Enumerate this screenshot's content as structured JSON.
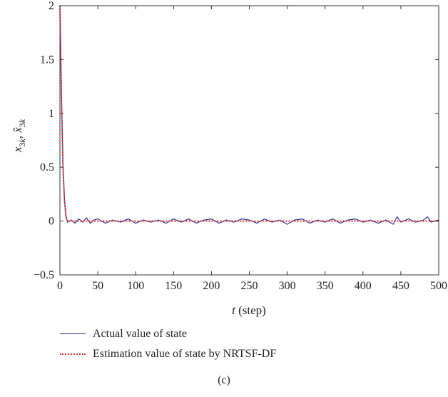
{
  "chart_data": {
    "type": "line",
    "xlabel_var": "t",
    "xlabel_unit": "(step)",
    "ylabel": "x3k, x̂3k",
    "xlim": [
      0,
      500
    ],
    "ylim": [
      -0.5,
      2
    ],
    "x_ticks": [
      "0",
      "50",
      "100",
      "150",
      "200",
      "250",
      "300",
      "350",
      "400",
      "450",
      "500"
    ],
    "y_ticks": [
      "−0.5",
      "0",
      "0.5",
      "1",
      "1.5",
      "2"
    ],
    "grid": false,
    "legend_position": "bottom-left, below plot",
    "series": [
      {
        "name": "Actual value of state",
        "color": "#2f2f8f",
        "style": "solid",
        "x": [
          0,
          2,
          4,
          6,
          8,
          10,
          15,
          20,
          25,
          30,
          35,
          40,
          45,
          50,
          60,
          70,
          80,
          90,
          100,
          110,
          120,
          130,
          140,
          150,
          160,
          170,
          180,
          190,
          200,
          210,
          220,
          230,
          240,
          250,
          260,
          270,
          280,
          290,
          300,
          310,
          320,
          330,
          340,
          350,
          360,
          370,
          380,
          390,
          400,
          410,
          420,
          430,
          440,
          445,
          450,
          460,
          470,
          480,
          485,
          490,
          500
        ],
        "y": [
          2.0,
          1.2,
          0.55,
          0.2,
          0.05,
          -0.01,
          0.01,
          -0.02,
          0.02,
          -0.01,
          0.03,
          -0.02,
          0.01,
          0.02,
          -0.02,
          0.01,
          -0.01,
          0.02,
          -0.02,
          0.01,
          -0.01,
          0.01,
          -0.02,
          0.02,
          -0.01,
          0.02,
          -0.02,
          0.01,
          0.02,
          -0.02,
          0.01,
          -0.01,
          0.02,
          0.01,
          -0.02,
          0.02,
          -0.01,
          0.01,
          -0.03,
          0.01,
          0.02,
          -0.02,
          0.01,
          -0.01,
          0.02,
          -0.02,
          0.01,
          0.02,
          -0.01,
          0.01,
          -0.02,
          0.01,
          -0.03,
          0.04,
          -0.01,
          0.02,
          -0.01,
          0.01,
          0.04,
          -0.01,
          0.01
        ]
      },
      {
        "name": "Estimation value of state by NRTSF-DF",
        "color": "#e8302a",
        "style": "dotted",
        "x": [
          0,
          2,
          4,
          6,
          8,
          10,
          20,
          50,
          100,
          150,
          200,
          250,
          300,
          350,
          400,
          450,
          500
        ],
        "y": [
          2.0,
          1.15,
          0.5,
          0.18,
          0.04,
          0.0,
          0.0,
          0.0,
          0.0,
          0.0,
          0.0,
          0.0,
          0.0,
          0.0,
          0.0,
          0.0,
          0.0
        ]
      }
    ]
  },
  "legend": {
    "actual": "Actual value of state",
    "estimation": "Estimation value of state by NRTSF-DF"
  },
  "caption": "(c)"
}
